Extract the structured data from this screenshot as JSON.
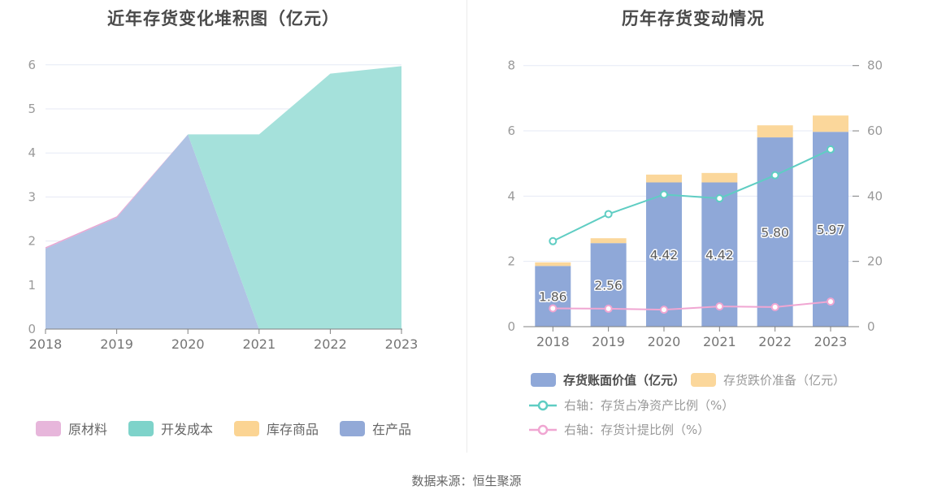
{
  "page": {
    "background": "#ffffff"
  },
  "footer": {
    "source": "数据来源：恒生聚源"
  },
  "chart_data": [
    {
      "id": "inventory-stacked-area",
      "type": "area",
      "title": "近年存货变化堆积图（亿元）",
      "categories": [
        "2018",
        "2019",
        "2020",
        "2021",
        "2022",
        "2023"
      ],
      "ylim": [
        0,
        6
      ],
      "yticks": [
        0,
        1,
        2,
        3,
        4,
        5,
        6
      ],
      "grid": true,
      "legend_position": "bottom",
      "stack_order_bottom_to_top": [
        "在产品",
        "开发成本",
        "库存商品",
        "原材料"
      ],
      "series": [
        {
          "name": "原材料",
          "color": "#E7B6DB",
          "area_color": "#E7A6D3",
          "values": [
            0.03,
            0.03,
            0,
            0,
            0,
            0
          ]
        },
        {
          "name": "开发成本",
          "color": "#7ED3CA",
          "area_color": "#A5E1DB",
          "values": [
            0,
            0,
            0,
            4.42,
            5.8,
            5.97
          ]
        },
        {
          "name": "库存商品",
          "color": "#FBD493",
          "area_color": "#FBD79B",
          "values": [
            0,
            0,
            0,
            0,
            0,
            0
          ]
        },
        {
          "name": "在产品",
          "color": "#92A9D7",
          "area_color": "#AFC3E4",
          "values": [
            1.83,
            2.53,
            4.42,
            0,
            0,
            0
          ]
        }
      ]
    },
    {
      "id": "inventory-bar-line",
      "type": "bar",
      "title": "历年存货变动情况",
      "categories": [
        "2018",
        "2019",
        "2020",
        "2021",
        "2022",
        "2023"
      ],
      "left_axis": {
        "ylim": [
          0,
          8
        ],
        "yticks": [
          0,
          2,
          4,
          6,
          8
        ]
      },
      "right_axis": {
        "ylim": [
          0,
          80
        ],
        "yticks": [
          0,
          20,
          40,
          60,
          80
        ]
      },
      "bar_series": [
        {
          "name": "存货账面价值（亿元）",
          "color": "#8FA8D8",
          "values": [
            1.86,
            2.56,
            4.42,
            4.42,
            5.8,
            5.97
          ],
          "labels": [
            "1.86",
            "2.56",
            "4.42",
            "4.42",
            "5.80",
            "5.97"
          ]
        },
        {
          "name": "存货跌价准备（亿元）",
          "color": "#FBD79B",
          "values": [
            0.11,
            0.15,
            0.24,
            0.29,
            0.37,
            0.5
          ]
        }
      ],
      "line_series": [
        {
          "name": "右轴：存货占净资产比例（%）",
          "axis": "right",
          "color": "#5FCDC3",
          "values": [
            26.2,
            34.5,
            40.5,
            39.3,
            46.4,
            54.3
          ]
        },
        {
          "name": "右轴：存货计提比例（%）",
          "axis": "right",
          "color": "#F0A6D2",
          "values": [
            5.6,
            5.5,
            5.2,
            6.2,
            6.0,
            7.7
          ]
        }
      ]
    }
  ]
}
